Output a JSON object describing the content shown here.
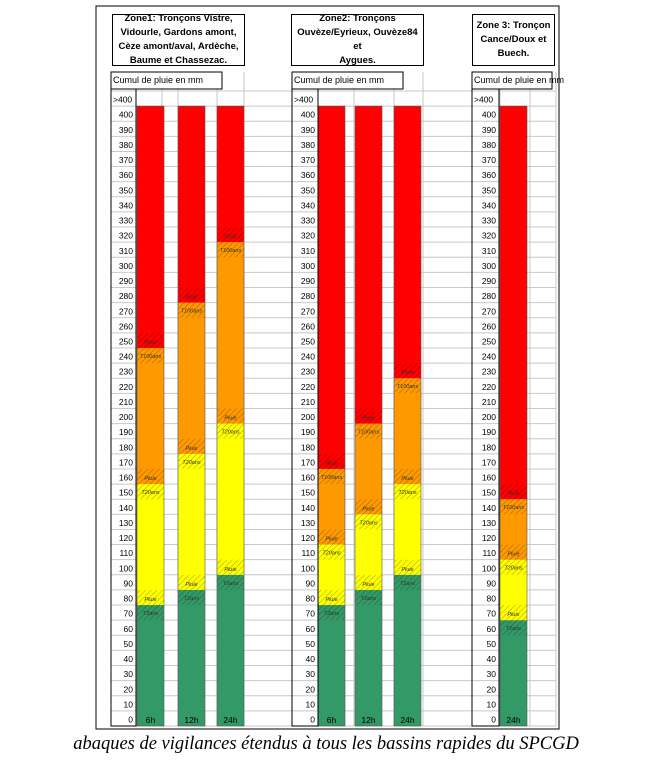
{
  "colors": {
    "green": "#339966",
    "yellow": "#ffff00",
    "orange": "#ff9900",
    "red": "#ff0000",
    "grid": "#c8c8c8",
    "frame": "#000000"
  },
  "caption": "abaques de vigilances étendus à tous les bassins rapides du SPCGD",
  "chart_data": {
    "type": "bar",
    "ylabel": "Cumul de pluie en mm",
    "ylim": [
      0,
      400
    ],
    "yticks": [
      "0",
      "10",
      "20",
      "30",
      "40",
      "50",
      "60",
      "70",
      "80",
      "90",
      "100",
      "110",
      "120",
      "130",
      "140",
      "150",
      "160",
      "170",
      "180",
      "190",
      "200",
      "210",
      "220",
      "230",
      "240",
      "250",
      "260",
      "270",
      "280",
      "290",
      "300",
      "310",
      "320",
      "330",
      "340",
      "350",
      "360",
      "370",
      "380",
      "390",
      "400",
      ">400"
    ],
    "level_labels": {
      "top": "Pluie",
      "t2": "T2ans",
      "t20": "T20ans",
      "t100": "T100ans"
    },
    "zones": [
      {
        "title_lines": [
          "Zone1: Tronçons Vistre,",
          "Vidourle, Gardons amont,",
          "Cèze amont/aval, Ardèche,",
          "Baume et Chassezac."
        ],
        "ylabel": "Cumul de pluie en mm",
        "columns": [
          {
            "label": "6h",
            "t2": 80,
            "t20": 160,
            "t100": 250
          },
          {
            "label": "12h",
            "t2": 90,
            "t20": 180,
            "t100": 280
          },
          {
            "label": "24h",
            "t2": 100,
            "t20": 200,
            "t100": 320
          }
        ]
      },
      {
        "title_lines": [
          "Zone2: Tronçons",
          "Ouvèze/Eyrieux, Ouvèze84 et",
          "Aygues."
        ],
        "ylabel": "Cumul de pluie en mm",
        "columns": [
          {
            "label": "6h",
            "t2": 80,
            "t20": 120,
            "t100": 170
          },
          {
            "label": "12h",
            "t2": 90,
            "t20": 140,
            "t100": 200
          },
          {
            "label": "24h",
            "t2": 100,
            "t20": 160,
            "t100": 230
          }
        ]
      },
      {
        "title_lines": [
          "Zone 3: Tronçon",
          "Cance/Doux et",
          "Buech."
        ],
        "ylabel": "Cumul de pluie en mm",
        "columns": [
          {
            "label": "24h",
            "t2": 70,
            "t20": 110,
            "t100": 150
          }
        ]
      }
    ]
  }
}
